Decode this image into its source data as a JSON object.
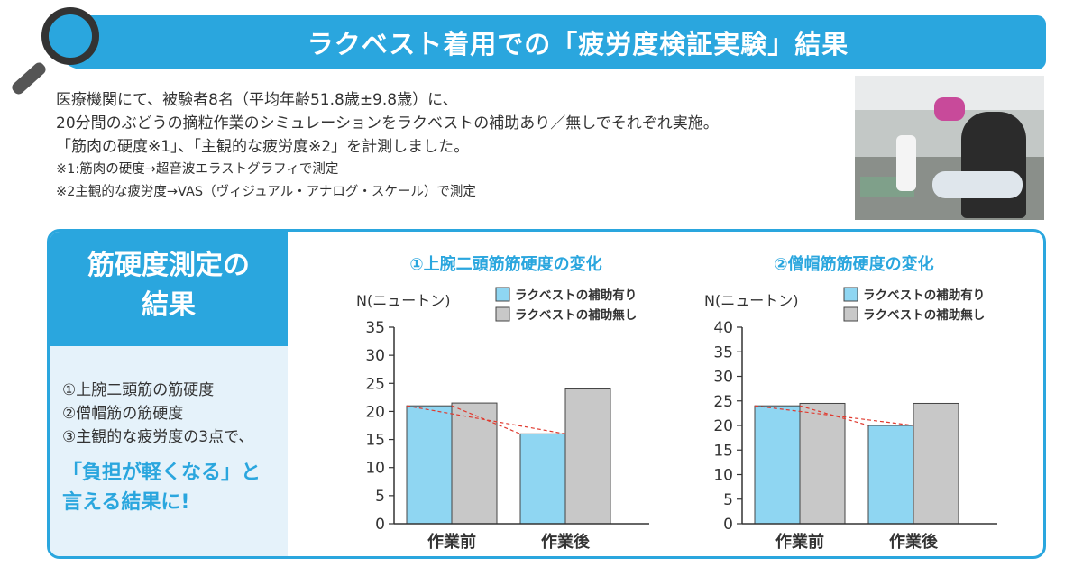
{
  "header": {
    "title": "ラクベスト着用での「疲労度検証実験」結果"
  },
  "intro": {
    "lines": [
      "医療機関にて、被験者8名（平均年齢51.8歳±9.8歳）に、",
      "20分間のぶどうの摘粒作業のシミュレーションをラクベストの補助あり／無しでそれぞれ実施。",
      "「筋肉の硬度※1」、「主観的な疲労度※2」を計測しました。"
    ],
    "notes": [
      "※1:筋肉の硬度→超音波エラストグラフィで測定",
      "※2主観的な疲労度→VAS（ヴィジュアル・アナログ・スケール）で測定"
    ]
  },
  "results": {
    "heading_line1": "筋硬度測定の",
    "heading_line2": "結果",
    "list": [
      "①上腕二頭筋の筋硬度",
      "②僧帽筋の筋硬度",
      "③主観的な疲労度の3点で、"
    ],
    "conclusion_line1": "「負担が軽くなる」と",
    "conclusion_line2": "言える結果に!"
  },
  "colors": {
    "accent": "#2aa6de",
    "with_assist": "#8fd6f2",
    "without_assist": "#c8c8c8",
    "trend_line": "#e03a2f",
    "left_panel_bg": "#e5f2fa"
  },
  "chart_data": [
    {
      "type": "bar",
      "title": "①上腕二頭筋筋硬度の変化",
      "ylabel": "N(ニュートン)",
      "xlabel": "",
      "categories": [
        "作業前",
        "作業後"
      ],
      "series": [
        {
          "name": "ラクベストの補助有り",
          "values": [
            21,
            16
          ]
        },
        {
          "name": "ラクベストの補助無し",
          "values": [
            21.5,
            24
          ]
        }
      ],
      "ylim": [
        0,
        35
      ],
      "yticks": [
        0,
        5,
        10,
        15,
        20,
        25,
        30,
        35
      ],
      "legend": "top-right",
      "grid": false
    },
    {
      "type": "bar",
      "title": "②僧帽筋筋硬度の変化",
      "ylabel": "N(ニュートン)",
      "xlabel": "",
      "categories": [
        "作業前",
        "作業後"
      ],
      "series": [
        {
          "name": "ラクベストの補助有り",
          "values": [
            24,
            20
          ]
        },
        {
          "name": "ラクベストの補助無し",
          "values": [
            24.5,
            24.5
          ]
        }
      ],
      "ylim": [
        0,
        40
      ],
      "yticks": [
        0,
        5,
        10,
        15,
        20,
        25,
        30,
        35,
        40
      ],
      "legend": "top-right",
      "grid": false
    }
  ]
}
